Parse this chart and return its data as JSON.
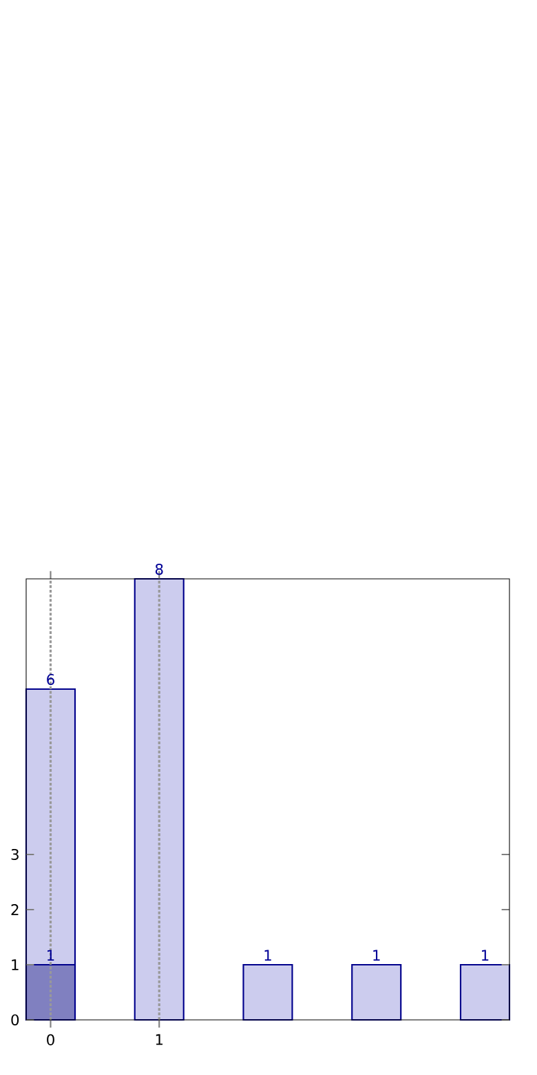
{
  "chart_data": {
    "type": "bar",
    "categories": [
      "0",
      "1",
      null,
      null,
      null
    ],
    "series": [
      {
        "color": "#ccccee",
        "values": [
          6,
          8,
          1,
          1,
          1
        ]
      },
      {
        "color": "#8080c0",
        "values": [
          1,
          null,
          null,
          null,
          null
        ]
      }
    ],
    "ylim": [
      0,
      8
    ],
    "yticks": [
      0,
      1,
      2,
      3
    ],
    "grid": "x",
    "data_labels": true
  }
}
